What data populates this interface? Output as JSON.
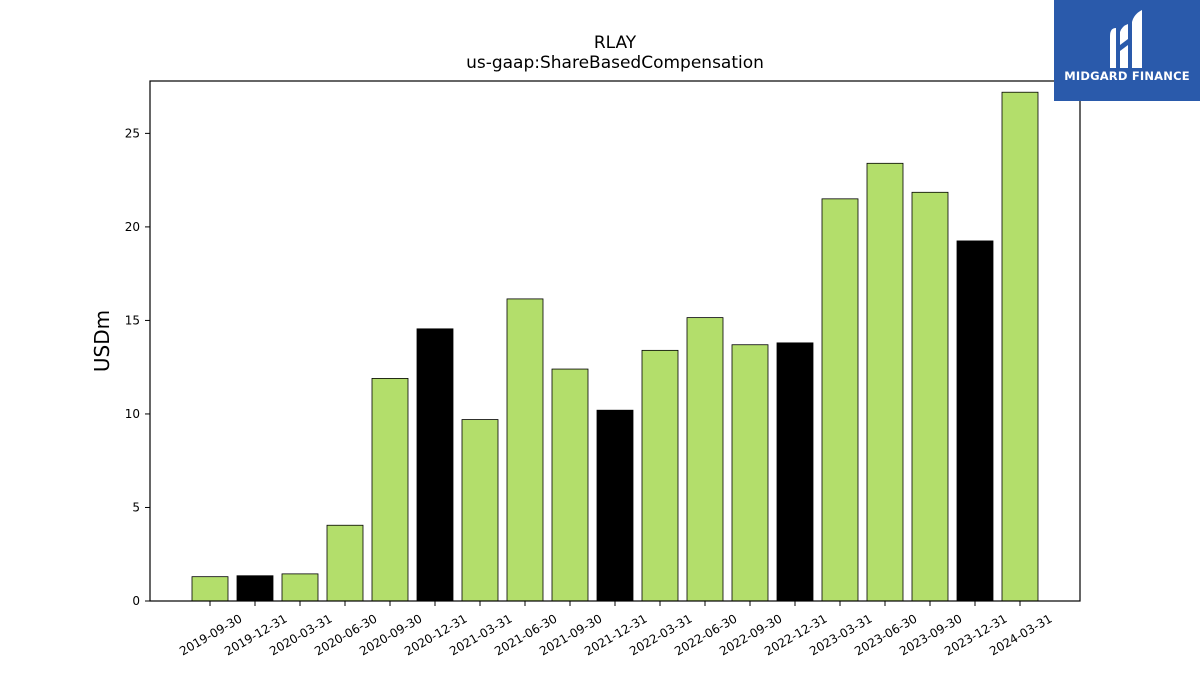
{
  "chart_data": {
    "type": "bar",
    "title": "RLAY",
    "subtitle": "us-gaap:ShareBasedCompensation",
    "ylabel": "USDm",
    "xlabel": "",
    "ylim": [
      0,
      27.8
    ],
    "yticks": [
      0,
      5,
      10,
      15,
      20,
      25
    ],
    "grid": false,
    "categories": [
      "2019-09-30",
      "2019-12-31",
      "2020-03-31",
      "2020-06-30",
      "2020-09-30",
      "2020-12-31",
      "2021-03-31",
      "2021-06-30",
      "2021-09-30",
      "2021-12-31",
      "2022-03-31",
      "2022-06-30",
      "2022-09-30",
      "2022-12-31",
      "2023-03-31",
      "2023-06-30",
      "2023-09-30",
      "2023-12-31",
      "2024-03-31"
    ],
    "values": [
      1.3,
      1.35,
      1.45,
      4.05,
      11.9,
      14.55,
      9.7,
      16.15,
      12.4,
      10.2,
      13.4,
      15.15,
      13.7,
      13.8,
      21.5,
      23.4,
      21.85,
      19.25,
      27.2
    ],
    "bar_colors": [
      "#b3de6b",
      "#000000",
      "#b3de6b",
      "#b3de6b",
      "#b3de6b",
      "#000000",
      "#b3de6b",
      "#b3de6b",
      "#b3de6b",
      "#000000",
      "#b3de6b",
      "#b3de6b",
      "#b3de6b",
      "#000000",
      "#b3de6b",
      "#b3de6b",
      "#b3de6b",
      "#000000",
      "#b3de6b"
    ]
  },
  "logo": {
    "text": "MIDGARD FINANCE",
    "icon": "midgard-logo-icon",
    "background": "#2a5aab"
  }
}
